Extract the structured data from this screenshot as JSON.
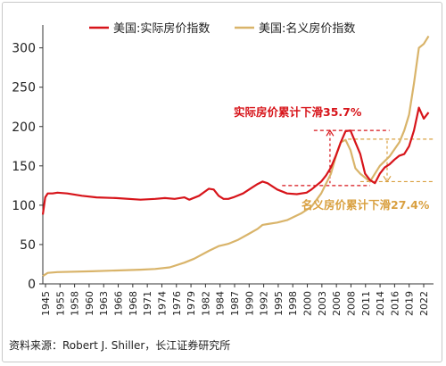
{
  "colors": {
    "real": "#d7141a",
    "nominal": "#d9b46a",
    "axis": "#333333"
  },
  "source": "资料来源：Robert J. Shiller，长江证券研究所",
  "chart_data": {
    "type": "line",
    "x_ticks": [
      "1945",
      "1955",
      "1958",
      "1960",
      "1963",
      "1966",
      "1968",
      "1971",
      "1974",
      "1976",
      "1979",
      "1982",
      "1984",
      "1987",
      "1990",
      "1992",
      "1995",
      "1998",
      "2000",
      "2003",
      "2006",
      "2008",
      "2011",
      "2014",
      "2016",
      "2019",
      "2022"
    ],
    "xlim": [
      1945,
      2025
    ],
    "ylim": [
      0,
      320
    ],
    "y_ticks": [
      "0",
      "50",
      "100",
      "150",
      "200",
      "250",
      "300"
    ],
    "legend_position": "top",
    "series": [
      {
        "name": "美国:实际房价指数",
        "x": [
          1945,
          1945.5,
          1946,
          1947,
          1948,
          1950,
          1953,
          1956,
          1960,
          1965,
          1968,
          1970,
          1972,
          1974,
          1975,
          1977,
          1979,
          1980,
          1981,
          1982,
          1983,
          1984,
          1986,
          1988,
          1989,
          1990,
          1991,
          1993,
          1995,
          1997,
          1999,
          2000,
          2001,
          2002,
          2003,
          2004,
          2005,
          2006,
          2007,
          2008,
          2009,
          2010,
          2011,
          2012,
          2013,
          2014,
          2015,
          2016,
          2017,
          2018,
          2019,
          2020,
          2021,
          2022,
          2023,
          2024
        ],
        "y": [
          88,
          110,
          115,
          115,
          116,
          115,
          112,
          110,
          109,
          107,
          108,
          109,
          108,
          110,
          107,
          112,
          121,
          120,
          112,
          108,
          108,
          110,
          115,
          123,
          127,
          130,
          128,
          120,
          115,
          114,
          116,
          120,
          125,
          130,
          138,
          148,
          163,
          180,
          194,
          195,
          180,
          165,
          140,
          132,
          128,
          140,
          148,
          152,
          158,
          163,
          165,
          175,
          195,
          224,
          210,
          218
        ]
      },
      {
        "name": "美国:名义房价指数",
        "x": [
          1945,
          1946,
          1948,
          1955,
          1965,
          1968,
          1971,
          1974,
          1976,
          1979,
          1981,
          1983,
          1985,
          1987,
          1989,
          1990,
          1991,
          1993,
          1995,
          1998,
          2000,
          2002,
          2004,
          2005,
          2006,
          2007,
          2008,
          2009,
          2010,
          2011,
          2012,
          2013,
          2014,
          2016,
          2018,
          2019,
          2020,
          2021,
          2022,
          2023,
          2024
        ],
        "y": [
          10,
          14,
          15,
          16,
          18,
          19,
          21,
          27,
          32,
          42,
          48,
          51,
          56,
          63,
          70,
          75,
          76,
          78,
          81,
          90,
          98,
          115,
          140,
          162,
          180,
          183,
          170,
          147,
          140,
          135,
          130,
          140,
          150,
          162,
          180,
          195,
          215,
          255,
          300,
          305,
          315
        ]
      }
    ],
    "annotations": [
      {
        "text": "实际房价累计下滑35.7%",
        "color": "#d7141a"
      },
      {
        "text": "名义房价累计下滑27.4%",
        "color": "#d9a040"
      }
    ]
  }
}
